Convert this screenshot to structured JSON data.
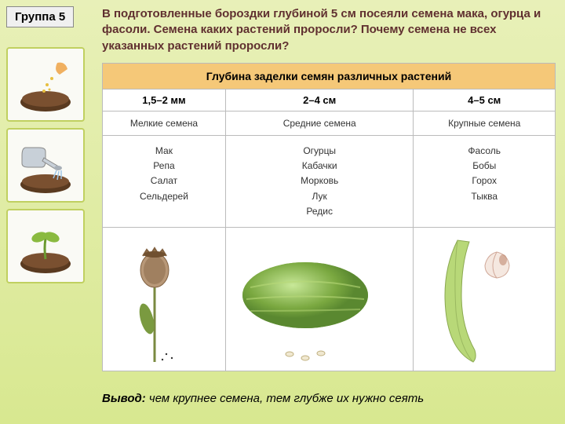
{
  "group_label": "Группа 5",
  "question": "В подготовленные бороздки глубиной 5 см посеяли семена мака, огурца и фасоли. Семена каких растений проросли? Почему семена не всех указанных растений проросли?",
  "table": {
    "title": "Глубина заделки семян различных растений",
    "title_bg": "#f5c878",
    "border_color": "#bbbbbb",
    "columns": [
      {
        "depth": "1,5–2 мм",
        "size": "Мелкие семена",
        "plants": "Мак\nРепа\nСалат\nСельдерей",
        "illustration": "poppy"
      },
      {
        "depth": "2–4 см",
        "size": "Средние семена",
        "plants": "Огурцы\nКабачки\nМорковь\nЛук\nРедис",
        "illustration": "cucumber"
      },
      {
        "depth": "4–5 см",
        "size": "Крупные семена",
        "plants": "Фасоль\nБобы\nГорох\nТыква",
        "illustration": "bean"
      }
    ]
  },
  "conclusion_label": "Вывод:",
  "conclusion_text": " чем крупнее семена, тем глубже их нужно сеять",
  "sidebar": {
    "thumbs": [
      "sowing",
      "watering",
      "sprout"
    ]
  },
  "colors": {
    "bg_top": "#e8f0b8",
    "bg_bottom": "#d8e890",
    "question_color": "#603030",
    "thumb_border": "#c0d060"
  }
}
